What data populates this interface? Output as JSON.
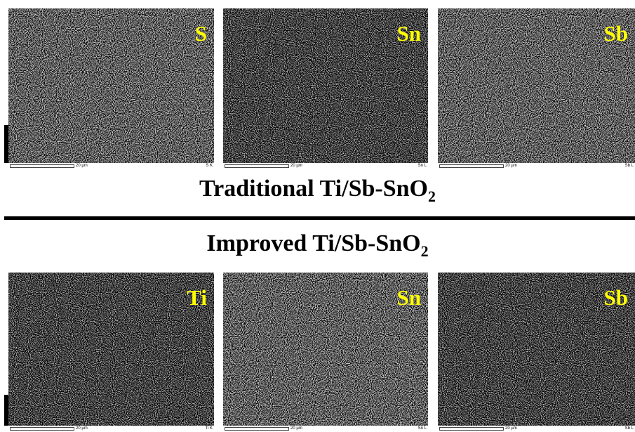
{
  "rows": [
    {
      "panels": [
        {
          "element": "S",
          "scale": "20 µm",
          "line": "S K"
        },
        {
          "element": "Sn",
          "scale": "20 µm",
          "line": "Sn L"
        },
        {
          "element": "Sb",
          "scale": "20 µm",
          "line": "Sb L"
        }
      ]
    },
    {
      "panels": [
        {
          "element": "Ti",
          "scale": "20 µm",
          "line": "Ti K"
        },
        {
          "element": "Sn",
          "scale": "20 µm",
          "line": "Sn L"
        },
        {
          "element": "Sb",
          "scale": "20 µm",
          "line": "Sb L"
        }
      ]
    }
  ],
  "titles": [
    {
      "text": "Traditional Ti/Sb-SnO",
      "subscript": "2"
    },
    {
      "text": "Improved Ti/Sb-SnO",
      "subscript": "2"
    }
  ]
}
